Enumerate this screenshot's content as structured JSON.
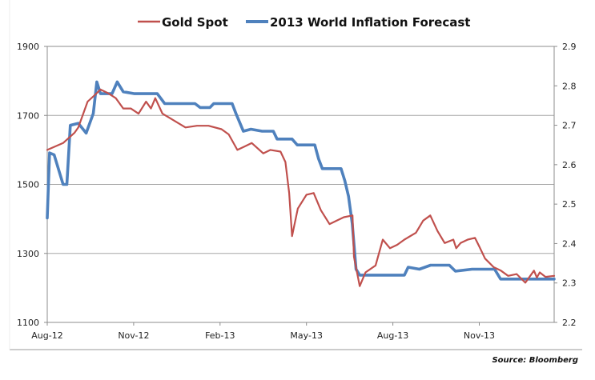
{
  "chart_data": {
    "type": "line",
    "title": "",
    "source": "Source: Bloomberg",
    "legend": {
      "position": "top",
      "entries": [
        "Gold Spot",
        "2013 World Inflation Forecast"
      ]
    },
    "colors": {
      "gold": "#c0504d",
      "inflation": "#4f81bd",
      "grid": "#a6a6a6",
      "axis": "#8c8c8c"
    },
    "x_axis": {
      "type": "date",
      "tick_labels": [
        "Aug-12",
        "Nov-12",
        "Feb-13",
        "May-13",
        "Aug-13",
        "Nov-13"
      ],
      "tick_months": [
        0,
        3,
        6,
        9,
        12,
        15
      ],
      "range_months": [
        0,
        17.6
      ]
    },
    "y_left": {
      "label": "",
      "ticks": [
        1100,
        1300,
        1500,
        1700,
        1900
      ],
      "range": [
        1100,
        1900
      ],
      "grid": true
    },
    "y_right": {
      "label": "",
      "ticks": [
        2.2,
        2.3,
        2.4,
        2.5,
        2.6,
        2.7,
        2.8,
        2.9
      ],
      "range": [
        2.2,
        2.9
      ]
    },
    "series": [
      {
        "name": "Gold Spot",
        "axis": "left",
        "x_months": [
          0,
          0.55,
          0.95,
          1.08,
          1.4,
          1.6,
          1.85,
          2.1,
          2.38,
          2.64,
          2.9,
          3.17,
          3.43,
          3.6,
          3.75,
          4.0,
          4.4,
          4.8,
          5.2,
          5.6,
          6.05,
          6.3,
          6.6,
          6.85,
          7.1,
          7.5,
          7.75,
          8.1,
          8.27,
          8.4,
          8.5,
          8.7,
          9.0,
          9.25,
          9.5,
          9.8,
          10.05,
          10.3,
          10.6,
          10.65,
          10.85,
          11.05,
          11.4,
          11.65,
          11.9,
          12.15,
          12.4,
          12.8,
          13.05,
          13.3,
          13.55,
          13.8,
          14.1,
          14.2,
          14.35,
          14.6,
          14.85,
          15.0,
          15.2,
          15.5,
          15.75,
          16.0,
          16.3,
          16.6,
          16.9,
          17.0,
          17.1,
          17.3,
          17.6
        ],
        "values": [
          1600,
          1620,
          1650,
          1665,
          1740,
          1755,
          1775,
          1765,
          1750,
          1720,
          1720,
          1705,
          1740,
          1720,
          1750,
          1705,
          1685,
          1665,
          1670,
          1670,
          1660,
          1645,
          1600,
          1610,
          1620,
          1590,
          1600,
          1595,
          1565,
          1475,
          1350,
          1430,
          1470,
          1475,
          1425,
          1385,
          1395,
          1405,
          1410,
          1290,
          1205,
          1245,
          1265,
          1340,
          1315,
          1325,
          1340,
          1360,
          1395,
          1410,
          1365,
          1330,
          1340,
          1315,
          1330,
          1340,
          1345,
          1320,
          1285,
          1260,
          1250,
          1235,
          1240,
          1215,
          1250,
          1230,
          1245,
          1232,
          1235
        ]
      },
      {
        "name": "2013 World Inflation Forecast",
        "axis": "right",
        "x_months": [
          0,
          0.08,
          0.24,
          0.55,
          0.68,
          0.8,
          1.08,
          1.35,
          1.6,
          1.72,
          1.85,
          2.25,
          2.43,
          2.64,
          3.03,
          3.82,
          4.08,
          5.13,
          5.31,
          5.65,
          5.78,
          6.42,
          6.55,
          6.81,
          7.07,
          7.46,
          7.85,
          7.98,
          8.5,
          8.68,
          8.9,
          9.29,
          9.42,
          9.55,
          10.2,
          10.33,
          10.46,
          10.59,
          10.72,
          10.85,
          12.4,
          12.53,
          12.92,
          13.31,
          13.96,
          14.17,
          14.75,
          15.53,
          15.74,
          16.3,
          17.6
        ],
        "values": [
          2.465,
          2.63,
          2.625,
          2.55,
          2.55,
          2.7,
          2.705,
          2.68,
          2.73,
          2.81,
          2.78,
          2.78,
          2.81,
          2.785,
          2.78,
          2.78,
          2.755,
          2.755,
          2.745,
          2.745,
          2.755,
          2.755,
          2.73,
          2.685,
          2.69,
          2.685,
          2.685,
          2.665,
          2.665,
          2.65,
          2.65,
          2.65,
          2.615,
          2.59,
          2.59,
          2.56,
          2.52,
          2.45,
          2.335,
          2.32,
          2.32,
          2.34,
          2.335,
          2.345,
          2.345,
          2.33,
          2.335,
          2.335,
          2.31,
          2.31,
          2.31
        ]
      }
    ]
  }
}
